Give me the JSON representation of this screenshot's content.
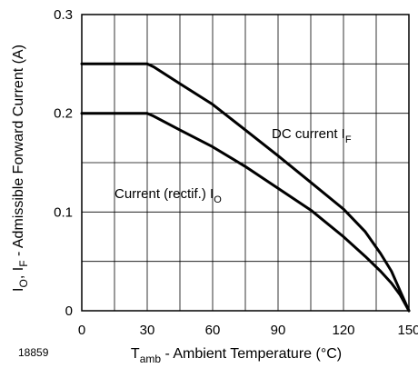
{
  "chart_data": {
    "type": "line",
    "title": "",
    "xlabel": {
      "prefix": "T",
      "sub": "amb",
      "rest": " - Ambient Temperature (°C)"
    },
    "ylabel": {
      "p1": "I",
      "s1": "O",
      "p2": ", I",
      "s2": "F",
      "p3": " - Admissible Forward Current (A)"
    },
    "xlim": [
      0,
      150
    ],
    "ylim": [
      0,
      0.3
    ],
    "xticks": [
      0,
      30,
      60,
      90,
      120,
      150
    ],
    "xtick_labels": [
      "0",
      "30",
      "60",
      "90",
      "120",
      "150"
    ],
    "yticks": [
      0,
      0.1,
      0.2,
      0.3
    ],
    "ytick_labels": [
      "0",
      "0.1",
      "0.2",
      "0.3"
    ],
    "x_minor_step": 15,
    "y_minor_step": 0.05,
    "grid": true,
    "figure_id": "18859",
    "series": [
      {
        "name": "DC current I_F",
        "label": {
          "text": "DC current I",
          "sub": "F"
        },
        "x": [
          0,
          30,
          33,
          45,
          60,
          75,
          90,
          105,
          120,
          130,
          137,
          142,
          146,
          148,
          150
        ],
        "y": [
          0.25,
          0.25,
          0.247,
          0.23,
          0.209,
          0.183,
          0.157,
          0.13,
          0.103,
          0.08,
          0.058,
          0.04,
          0.02,
          0.01,
          0
        ]
      },
      {
        "name": "Current (rectif.) I_O",
        "label": {
          "text": "Current (rectif.) I",
          "sub": "O"
        },
        "x": [
          0,
          30,
          33,
          45,
          60,
          75,
          90,
          105,
          120,
          130,
          137,
          142,
          146,
          148,
          150
        ],
        "y": [
          0.2,
          0.2,
          0.197,
          0.183,
          0.166,
          0.146,
          0.124,
          0.102,
          0.075,
          0.055,
          0.04,
          0.028,
          0.016,
          0.008,
          0
        ]
      }
    ]
  }
}
